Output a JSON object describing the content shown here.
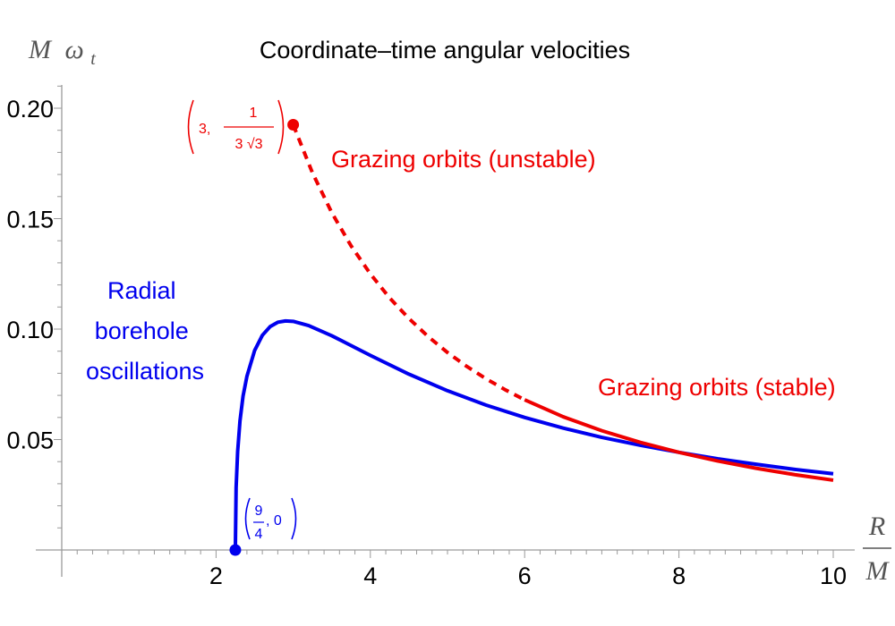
{
  "chart_data": {
    "type": "line",
    "title": "Coordinate–time angular velocities",
    "ylabel": {
      "var": "M",
      "symbol": "ω",
      "sub": "t"
    },
    "xlabel": {
      "num": "R",
      "den": "M"
    },
    "xlim": [
      0,
      10
    ],
    "ylim": [
      0,
      0.21
    ],
    "x_ticks": [
      2,
      4,
      6,
      8,
      10
    ],
    "x_tick_labels": [
      "2",
      "4",
      "6",
      "8",
      "10"
    ],
    "y_ticks": [
      0.05,
      0.1,
      0.15,
      0.2
    ],
    "y_tick_labels": [
      "0.05",
      "0.10",
      "0.15",
      "0.20"
    ],
    "grid": false,
    "series": [
      {
        "color": "#0000ee",
        "style": "solid",
        "x": [
          2.25,
          2.26,
          2.28,
          2.31,
          2.35,
          2.4,
          2.5,
          2.6,
          2.7,
          2.8,
          2.9,
          3.0,
          3.2,
          3.5,
          4.0,
          4.5,
          5.0,
          5.5,
          6.0,
          6.5,
          7.0,
          7.5,
          8.0,
          8.5,
          9.0,
          9.5,
          10.0
        ],
        "y": [
          0.0,
          0.0282,
          0.0446,
          0.0584,
          0.0697,
          0.0786,
          0.0903,
          0.0972,
          0.1011,
          0.1031,
          0.1037,
          0.1035,
          0.1016,
          0.097,
          0.0881,
          0.0796,
          0.0721,
          0.0656,
          0.06,
          0.0552,
          0.051,
          0.0474,
          0.0442,
          0.0413,
          0.0388,
          0.0365,
          0.0345
        ]
      },
      {
        "color": "#ee0000",
        "style": "dashed",
        "x": [
          3.0,
          3.25,
          3.5,
          3.75,
          4.0,
          4.25,
          4.5,
          4.75,
          5.0,
          5.25,
          5.5,
          5.75,
          6.0
        ],
        "y": [
          0.1925,
          0.1707,
          0.1527,
          0.1377,
          0.125,
          0.1141,
          0.1048,
          0.0966,
          0.0894,
          0.0831,
          0.0775,
          0.0725,
          0.068
        ]
      },
      {
        "color": "#ee0000",
        "style": "solid",
        "x": [
          6.0,
          6.5,
          7.0,
          7.5,
          8.0,
          8.5,
          9.0,
          9.5,
          10.0
        ],
        "y": [
          0.068,
          0.0603,
          0.054,
          0.0487,
          0.0442,
          0.0403,
          0.037,
          0.0341,
          0.0316
        ]
      }
    ],
    "points": [
      {
        "x": 3.0,
        "y": 0.1925,
        "color": "#ee0000",
        "label_lead": "3,",
        "label_num": "1",
        "label_den": "3 √3"
      },
      {
        "x": 2.25,
        "y": 0.0,
        "color": "#0000ee",
        "label_num": "9",
        "label_den": "4",
        "label_tail": ", 0"
      }
    ],
    "annotations": [
      {
        "text": "Grazing orbits (unstable)",
        "color": "#ee0000"
      },
      {
        "text": "Grazing orbits (stable)",
        "color": "#ee0000"
      },
      {
        "lines": [
          "Radial",
          "borehole",
          "oscillations"
        ],
        "color": "#0000ee"
      }
    ]
  }
}
